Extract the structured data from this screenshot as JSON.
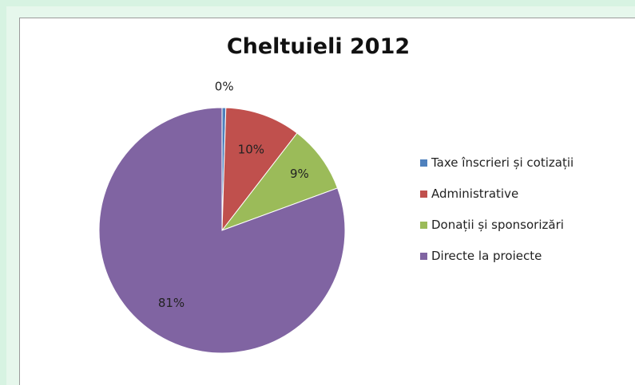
{
  "chart_data": {
    "type": "pie",
    "title": "Cheltuieli 2012",
    "categories": [
      "Taxe înscrieri și cotizații",
      "Administrative",
      "Donații și sponsorizări",
      "Directe la proiecte"
    ],
    "values": [
      0.5,
      10,
      9,
      81
    ],
    "data_labels": [
      "0%",
      "10%",
      "9%",
      "81%"
    ],
    "colors": [
      "#4f81bd",
      "#c0504d",
      "#9bbb59",
      "#8064a2"
    ],
    "legend_position": "right"
  }
}
